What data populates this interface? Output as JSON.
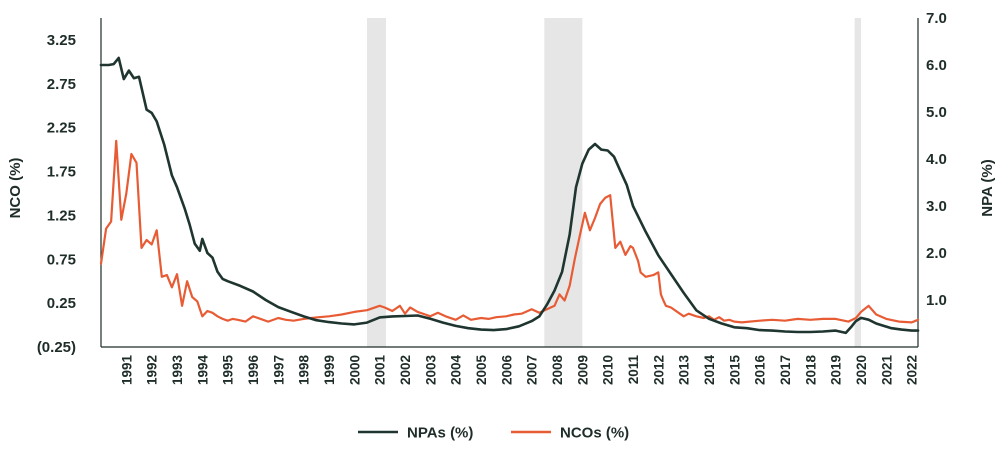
{
  "chart_data": {
    "type": "line",
    "title": "",
    "ylabel_left": "NCO (%)",
    "ylabel_right": "NPA (%)",
    "left_axis": {
      "min": -0.25,
      "max": 3.5,
      "ticks": [
        3.25,
        2.75,
        2.25,
        1.75,
        1.25,
        0.75,
        0.25,
        -0.25
      ],
      "tick_labels": [
        "3.25",
        "2.75",
        "2.25",
        "1.75",
        "1.25",
        "0.75",
        "0.25",
        "(0.25)"
      ]
    },
    "right_axis": {
      "min": 0.0,
      "max": 7.0,
      "ticks": [
        7.0,
        6.0,
        5.0,
        4.0,
        3.0,
        2.0,
        1.0
      ],
      "tick_labels": [
        "7.0",
        "6.0",
        "5.0",
        "4.0",
        "3.0",
        "2.0",
        "1.0"
      ]
    },
    "x_range": [
      1990.0,
      2022.25
    ],
    "x_tick_labels": [
      "1991",
      "1992",
      "1993",
      "1994",
      "1995",
      "1996",
      "1997",
      "1998",
      "1999",
      "2000",
      "2001",
      "2002",
      "2003",
      "2004",
      "2005",
      "2006",
      "2007",
      "2008",
      "2009",
      "2010",
      "2011",
      "2012",
      "2013",
      "2014",
      "2015",
      "2016",
      "2017",
      "2018",
      "2019",
      "2020",
      "2021",
      "2022"
    ],
    "recessions": [
      [
        2000.5,
        2001.25
      ],
      [
        2007.5,
        2009.0
      ],
      [
        2019.75,
        2020.0
      ]
    ],
    "colors": {
      "npa": "#1f3530",
      "nco": "#e85c35",
      "recession": "#e6e6e6",
      "text": "#1f2d2a"
    },
    "series": [
      {
        "name": "NPAs (%)",
        "axis": "right",
        "x": [
          1990.0,
          1990.3,
          1990.5,
          1990.7,
          1990.9,
          1991.1,
          1991.3,
          1991.5,
          1991.8,
          1992.0,
          1992.2,
          1992.5,
          1992.8,
          1993.0,
          1993.3,
          1993.5,
          1993.7,
          1993.9,
          1994.0,
          1994.2,
          1994.4,
          1994.6,
          1994.8,
          1995.0,
          1995.5,
          1996.0,
          1996.5,
          1997.0,
          1997.5,
          1998.0,
          1998.5,
          1999.0,
          1999.5,
          2000.0,
          2000.5,
          2001.0,
          2001.5,
          2002.0,
          2002.5,
          2003.0,
          2003.5,
          2004.0,
          2004.5,
          2005.0,
          2005.5,
          2006.0,
          2006.5,
          2007.0,
          2007.3,
          2007.6,
          2007.9,
          2008.2,
          2008.5,
          2008.75,
          2009.0,
          2009.25,
          2009.5,
          2009.75,
          2010.0,
          2010.25,
          2010.5,
          2010.75,
          2011.0,
          2011.5,
          2012.0,
          2012.5,
          2013.0,
          2013.5,
          2014.0,
          2014.5,
          2015.0,
          2015.5,
          2016.0,
          2016.5,
          2017.0,
          2017.5,
          2018.0,
          2018.5,
          2019.0,
          2019.4,
          2019.6,
          2019.8,
          2020.0,
          2020.3,
          2020.6,
          2020.9,
          2021.2,
          2021.6,
          2022.0,
          2022.25
        ],
        "values": [
          6.0,
          6.0,
          6.02,
          6.15,
          5.7,
          5.88,
          5.72,
          5.75,
          5.05,
          4.98,
          4.8,
          4.3,
          3.65,
          3.4,
          2.95,
          2.6,
          2.2,
          2.05,
          2.3,
          2.0,
          1.9,
          1.6,
          1.45,
          1.4,
          1.3,
          1.18,
          1.0,
          0.85,
          0.75,
          0.65,
          0.57,
          0.53,
          0.5,
          0.48,
          0.52,
          0.63,
          0.65,
          0.66,
          0.67,
          0.6,
          0.52,
          0.45,
          0.4,
          0.37,
          0.36,
          0.38,
          0.44,
          0.55,
          0.65,
          0.9,
          1.2,
          1.6,
          2.4,
          3.4,
          3.9,
          4.2,
          4.32,
          4.2,
          4.18,
          4.05,
          3.75,
          3.45,
          3.0,
          2.45,
          1.95,
          1.55,
          1.15,
          0.78,
          0.6,
          0.5,
          0.42,
          0.4,
          0.36,
          0.35,
          0.33,
          0.32,
          0.32,
          0.33,
          0.35,
          0.3,
          0.42,
          0.55,
          0.62,
          0.58,
          0.5,
          0.45,
          0.4,
          0.37,
          0.35,
          0.35
        ]
      },
      {
        "name": "NCOs (%)",
        "axis": "left",
        "x": [
          1990.0,
          1990.2,
          1990.4,
          1990.6,
          1990.8,
          1991.0,
          1991.2,
          1991.4,
          1991.6,
          1991.8,
          1992.0,
          1992.2,
          1992.4,
          1992.6,
          1992.8,
          1993.0,
          1993.2,
          1993.4,
          1993.6,
          1993.8,
          1994.0,
          1994.2,
          1994.4,
          1994.6,
          1994.8,
          1995.0,
          1995.2,
          1995.4,
          1995.7,
          1996.0,
          1996.3,
          1996.6,
          1997.0,
          1997.3,
          1997.6,
          1998.0,
          1998.3,
          1998.6,
          1999.0,
          1999.5,
          2000.0,
          2000.5,
          2001.0,
          2001.2,
          2001.5,
          2001.8,
          2002.0,
          2002.2,
          2002.5,
          2002.8,
          2003.0,
          2003.3,
          2003.6,
          2004.0,
          2004.3,
          2004.6,
          2005.0,
          2005.3,
          2005.6,
          2006.0,
          2006.3,
          2006.6,
          2007.0,
          2007.3,
          2007.6,
          2007.9,
          2008.1,
          2008.3,
          2008.5,
          2008.7,
          2008.9,
          2009.1,
          2009.3,
          2009.5,
          2009.7,
          2009.9,
          2010.1,
          2010.3,
          2010.5,
          2010.7,
          2010.9,
          2011.0,
          2011.2,
          2011.3,
          2011.5,
          2011.8,
          2012.0,
          2012.1,
          2012.2,
          2012.3,
          2012.5,
          2012.8,
          2013.0,
          2013.2,
          2013.5,
          2013.8,
          2014.0,
          2014.2,
          2014.4,
          2014.6,
          2014.8,
          2015.0,
          2015.3,
          2015.6,
          2016.0,
          2016.5,
          2017.0,
          2017.5,
          2018.0,
          2018.5,
          2019.0,
          2019.5,
          2019.8,
          2020.0,
          2020.3,
          2020.6,
          2021.0,
          2021.5,
          2022.0,
          2022.25
        ],
        "values": [
          0.7,
          1.1,
          1.18,
          2.1,
          1.2,
          1.5,
          1.95,
          1.85,
          0.88,
          0.97,
          0.92,
          1.08,
          0.55,
          0.57,
          0.43,
          0.58,
          0.22,
          0.5,
          0.32,
          0.27,
          0.1,
          0.16,
          0.14,
          0.1,
          0.07,
          0.05,
          0.07,
          0.06,
          0.04,
          0.1,
          0.07,
          0.04,
          0.08,
          0.06,
          0.05,
          0.07,
          0.08,
          0.09,
          0.1,
          0.12,
          0.15,
          0.17,
          0.22,
          0.2,
          0.16,
          0.22,
          0.13,
          0.2,
          0.15,
          0.12,
          0.1,
          0.14,
          0.1,
          0.06,
          0.11,
          0.06,
          0.08,
          0.07,
          0.09,
          0.1,
          0.12,
          0.13,
          0.18,
          0.14,
          0.18,
          0.22,
          0.35,
          0.28,
          0.45,
          0.75,
          1.02,
          1.28,
          1.08,
          1.22,
          1.38,
          1.45,
          1.48,
          0.88,
          0.95,
          0.8,
          0.9,
          0.88,
          0.73,
          0.6,
          0.55,
          0.57,
          0.6,
          0.35,
          0.28,
          0.22,
          0.2,
          0.14,
          0.1,
          0.13,
          0.1,
          0.08,
          0.1,
          0.06,
          0.09,
          0.05,
          0.06,
          0.04,
          0.03,
          0.04,
          0.05,
          0.06,
          0.05,
          0.07,
          0.06,
          0.07,
          0.07,
          0.04,
          0.08,
          0.15,
          0.22,
          0.12,
          0.07,
          0.04,
          0.03,
          0.06
        ]
      }
    ],
    "legend": {
      "position": "bottom-center",
      "entries": [
        "NPAs (%)",
        "NCOs (%)"
      ]
    }
  }
}
